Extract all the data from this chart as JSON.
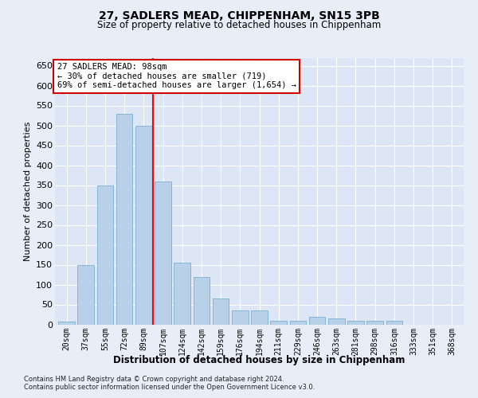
{
  "title1": "27, SADLERS MEAD, CHIPPENHAM, SN15 3PB",
  "title2": "Size of property relative to detached houses in Chippenham",
  "xlabel": "Distribution of detached houses by size in Chippenham",
  "ylabel": "Number of detached properties",
  "categories": [
    "20sqm",
    "37sqm",
    "55sqm",
    "72sqm",
    "89sqm",
    "107sqm",
    "124sqm",
    "142sqm",
    "159sqm",
    "176sqm",
    "194sqm",
    "211sqm",
    "229sqm",
    "246sqm",
    "263sqm",
    "281sqm",
    "298sqm",
    "316sqm",
    "333sqm",
    "351sqm",
    "368sqm"
  ],
  "values": [
    8,
    150,
    350,
    530,
    500,
    360,
    155,
    120,
    65,
    35,
    35,
    10,
    10,
    20,
    15,
    10,
    10,
    10,
    0,
    0,
    0
  ],
  "bar_color": "#b8d0e8",
  "bar_edge_color": "#7aafd4",
  "bg_color": "#dce6f5",
  "grid_color": "#ffffff",
  "annotation_text": "27 SADLERS MEAD: 98sqm\n← 30% of detached houses are smaller (719)\n69% of semi-detached houses are larger (1,654) →",
  "annotation_box_color": "#ffffff",
  "annotation_border_color": "#cc0000",
  "footnote1": "Contains HM Land Registry data © Crown copyright and database right 2024.",
  "footnote2": "Contains public sector information licensed under the Open Government Licence v3.0.",
  "ylim": [
    0,
    670
  ],
  "yticks": [
    0,
    50,
    100,
    150,
    200,
    250,
    300,
    350,
    400,
    450,
    500,
    550,
    600,
    650
  ],
  "red_line_x": 4.5,
  "fig_bg": "#e8eef8"
}
